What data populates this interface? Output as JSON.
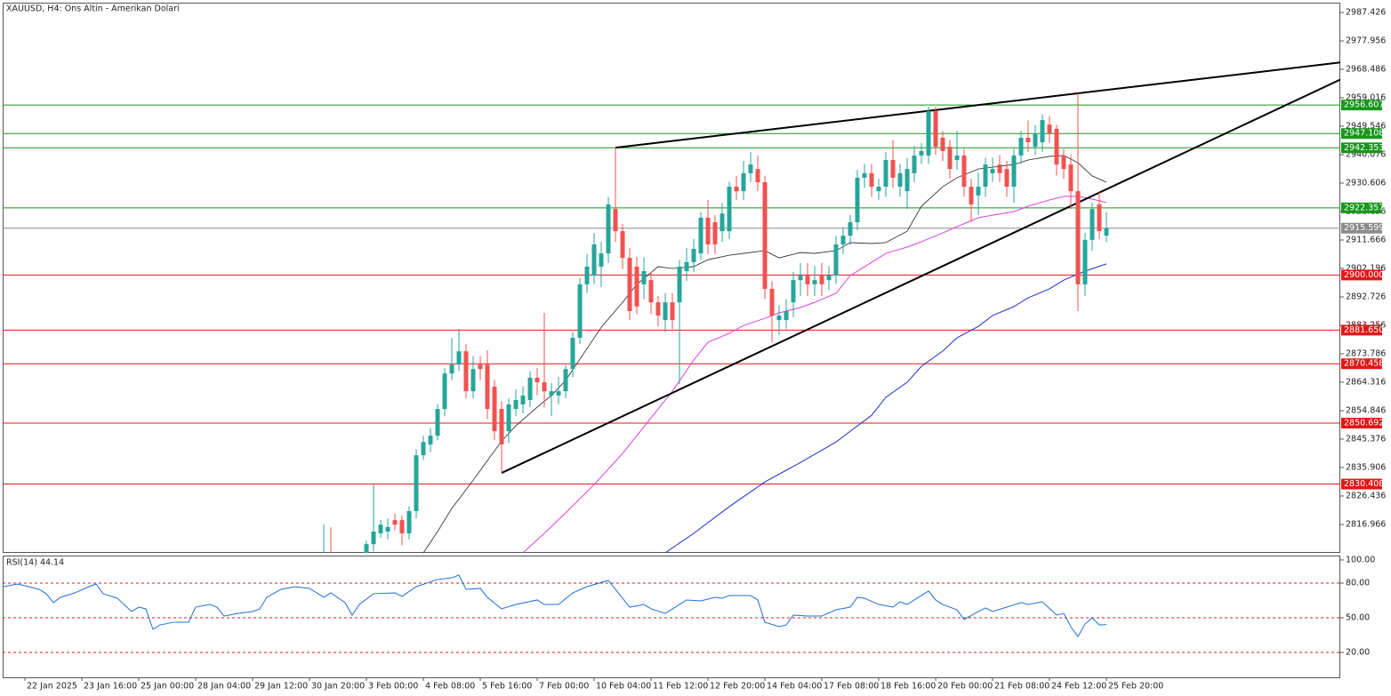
{
  "header": "XAUUSD, H4:  Ons Altin - Amerikan Dolari",
  "chart_data": {
    "type": "candlestick",
    "xlim": [
      -3.125,
      184.875
    ],
    "xticks": [
      {
        "value": 0,
        "label": "22 Jan 2025"
      },
      {
        "value": 8,
        "label": "23 Jan 16:00"
      },
      {
        "value": 16,
        "label": "25 Jan 00:00"
      },
      {
        "value": 24,
        "label": "28 Jan 04:00"
      },
      {
        "value": 32,
        "label": "29 Jan 12:00"
      },
      {
        "value": 40,
        "label": "30 Jan 20:00"
      },
      {
        "value": 48,
        "label": "3 Feb 00:00"
      },
      {
        "value": 56,
        "label": "4 Feb 08:00"
      },
      {
        "value": 64,
        "label": "5 Feb 16:00"
      },
      {
        "value": 72,
        "label": "7 Feb 00:00"
      },
      {
        "value": 80,
        "label": "10 Feb 04:00"
      },
      {
        "value": 88,
        "label": "11 Feb 12:00"
      },
      {
        "value": 96,
        "label": "12 Feb 20:00"
      },
      {
        "value": 104,
        "label": "14 Feb 04:00"
      },
      {
        "value": 112,
        "label": "17 Feb 08:00"
      },
      {
        "value": 120,
        "label": "18 Feb 16:00"
      },
      {
        "value": 128,
        "label": "20 Feb 00:00"
      },
      {
        "value": 136,
        "label": "21 Feb 08:00"
      },
      {
        "value": 144,
        "label": "24 Feb 12:00"
      },
      {
        "value": 152,
        "label": "25 Feb 20:00"
      }
    ],
    "ylim": [
      2807.49,
      2990.68
    ],
    "yticks": [
      2987.426,
      2977.956,
      2968.486,
      2959.016,
      2949.546,
      2940.076,
      2930.606,
      2921.136,
      2911.666,
      2902.196,
      2892.726,
      2883.256,
      2873.786,
      2864.316,
      2854.846,
      2845.376,
      2835.906,
      2826.436,
      2816.966
    ],
    "up_color": "#26a69a",
    "down_color": "#ef5350",
    "candles": [
      [
        42,
        2800,
        2817,
        2798,
        2805
      ],
      [
        43,
        2806,
        2816,
        2797,
        2801
      ],
      [
        48,
        2806,
        2811.6,
        2803,
        2810.4
      ],
      [
        49,
        2810.4,
        2830.2,
        2808,
        2814.6
      ],
      [
        50,
        2814,
        2818.5,
        2812.5,
        2816.9
      ],
      [
        51,
        2814.6,
        2819,
        2812,
        2816.1
      ],
      [
        52,
        2818.4,
        2820.5,
        2815,
        2816.9
      ],
      [
        53,
        2818.4,
        2820,
        2810,
        2814
      ],
      [
        54,
        2814,
        2823,
        2812,
        2821.4
      ],
      [
        55,
        2821.4,
        2842,
        2819,
        2840
      ],
      [
        56,
        2840,
        2846.5,
        2838.5,
        2844.4
      ],
      [
        57,
        2843.6,
        2849,
        2841,
        2846.5
      ],
      [
        58,
        2846.5,
        2857,
        2845,
        2855.4
      ],
      [
        59,
        2855.4,
        2869,
        2853,
        2867.2
      ],
      [
        60,
        2867.2,
        2879,
        2865,
        2870.2
      ],
      [
        61,
        2870.2,
        2882,
        2868,
        2874.6
      ],
      [
        62,
        2874.6,
        2877,
        2859,
        2861.3
      ],
      [
        63,
        2861.3,
        2873,
        2859,
        2868.7
      ],
      [
        64,
        2870.2,
        2873,
        2865,
        2868.7
      ],
      [
        65,
        2870.2,
        2875,
        2852,
        2855.4
      ],
      [
        66,
        2862.8,
        2865,
        2845,
        2848
      ],
      [
        67,
        2855.4,
        2858,
        2834.1,
        2843.6
      ],
      [
        68,
        2848,
        2859,
        2844,
        2856.9
      ],
      [
        69,
        2855.4,
        2862,
        2853,
        2858.4
      ],
      [
        70,
        2856.9,
        2863,
        2854,
        2859.9
      ],
      [
        71,
        2858.4,
        2868,
        2856,
        2865.8
      ],
      [
        72,
        2865.8,
        2869,
        2860,
        2864.3
      ],
      [
        73,
        2864.3,
        2887.4,
        2856,
        2861.3
      ],
      [
        74,
        2859.9,
        2864,
        2853,
        2861.3
      ],
      [
        75,
        2859.9,
        2866,
        2857,
        2861.3
      ],
      [
        76,
        2861.3,
        2870,
        2859,
        2868.7
      ],
      [
        77,
        2868.7,
        2881,
        2866,
        2879.1
      ],
      [
        78,
        2879.1,
        2899,
        2877,
        2896.9
      ],
      [
        79,
        2896.9,
        2907,
        2894,
        2902.8
      ],
      [
        80,
        2899.8,
        2914,
        2897,
        2910.2
      ],
      [
        81,
        2902.8,
        2911,
        2896,
        2907.2
      ],
      [
        82,
        2907.2,
        2926,
        2904,
        2923.5
      ],
      [
        83,
        2922,
        2942.4,
        2911,
        2914.6
      ],
      [
        84,
        2914.6,
        2917,
        2902,
        2905.7
      ],
      [
        85,
        2905.7,
        2909,
        2885,
        2888
      ],
      [
        86,
        2902.8,
        2906,
        2887,
        2889.5
      ],
      [
        87,
        2896.9,
        2906,
        2892,
        2901.3
      ],
      [
        88,
        2898.3,
        2901,
        2887,
        2890.9
      ],
      [
        89,
        2890.9,
        2893,
        2883,
        2886.5
      ],
      [
        90,
        2885,
        2894,
        2881,
        2890.9
      ],
      [
        91,
        2890.9,
        2894,
        2882,
        2885
      ],
      [
        92,
        2890.9,
        2905,
        2863.7,
        2902.8
      ],
      [
        93,
        2901.3,
        2909,
        2898,
        2904.3
      ],
      [
        94,
        2904.3,
        2912,
        2901,
        2908.7
      ],
      [
        95,
        2907.2,
        2921,
        2905,
        2919.1
      ],
      [
        96,
        2919.1,
        2925,
        2907,
        2910.2
      ],
      [
        97,
        2917.6,
        2920,
        2907,
        2910.2
      ],
      [
        98,
        2914.6,
        2924,
        2911,
        2920.5
      ],
      [
        99,
        2914.6,
        2931,
        2912,
        2929.4
      ],
      [
        100,
        2929.4,
        2933,
        2925,
        2927.9
      ],
      [
        101,
        2927.9,
        2938,
        2925,
        2933.9
      ],
      [
        102,
        2933.9,
        2941,
        2931,
        2936.8
      ],
      [
        103,
        2935.3,
        2939.8,
        2928,
        2930.9
      ],
      [
        104,
        2930.9,
        2933,
        2892,
        2895.4
      ],
      [
        105,
        2895.4,
        2898,
        2877.6,
        2886.5
      ],
      [
        106,
        2885,
        2890,
        2880,
        2886.5
      ],
      [
        107,
        2885,
        2892,
        2882,
        2888
      ],
      [
        108,
        2890.9,
        2901,
        2886,
        2898.3
      ],
      [
        109,
        2898.3,
        2904,
        2893,
        2899.8
      ],
      [
        110,
        2899.8,
        2904,
        2893,
        2896.9
      ],
      [
        111,
        2896.9,
        2903,
        2893,
        2898.3
      ],
      [
        112,
        2899.8,
        2904,
        2893,
        2896.9
      ],
      [
        113,
        2898.3,
        2903,
        2895,
        2899.8
      ],
      [
        114,
        2899.8,
        2913,
        2897,
        2910.2
      ],
      [
        115,
        2910.2,
        2916,
        2907,
        2913.1
      ],
      [
        116,
        2913.1,
        2920,
        2910,
        2917.6
      ],
      [
        117,
        2917.6,
        2935,
        2915,
        2932.4
      ],
      [
        118,
        2932.4,
        2937,
        2929,
        2933.9
      ],
      [
        119,
        2933.9,
        2937,
        2926,
        2929.4
      ],
      [
        120,
        2927.9,
        2932,
        2925,
        2929.4
      ],
      [
        121,
        2929.4,
        2941,
        2926,
        2938.3
      ],
      [
        122,
        2938.3,
        2945,
        2929,
        2932.4
      ],
      [
        123,
        2929.4,
        2937,
        2926,
        2933.9
      ],
      [
        124,
        2927.9,
        2939,
        2922,
        2935.3
      ],
      [
        125,
        2933.9,
        2943,
        2931,
        2939.8
      ],
      [
        126,
        2939.8,
        2944,
        2937,
        2941.3
      ],
      [
        127,
        2939.8,
        2956,
        2937,
        2954.6
      ],
      [
        128,
        2954.6,
        2956,
        2940,
        2942.7
      ],
      [
        129,
        2945.7,
        2948,
        2938,
        2941.3
      ],
      [
        130,
        2942.7,
        2945,
        2932,
        2935.3
      ],
      [
        131,
        2938.3,
        2948,
        2935,
        2939.8
      ],
      [
        132,
        2939.8,
        2942,
        2926,
        2929.4
      ],
      [
        133,
        2929.4,
        2932,
        2917.6,
        2923.5
      ],
      [
        134,
        2926.5,
        2934,
        2920,
        2929.4
      ],
      [
        135,
        2929.4,
        2939,
        2926,
        2936.8
      ],
      [
        136,
        2933.9,
        2939,
        2931,
        2935.3
      ],
      [
        137,
        2936.8,
        2940,
        2931,
        2933.9
      ],
      [
        138,
        2935.3,
        2938,
        2926,
        2929.4
      ],
      [
        139,
        2929.4,
        2942,
        2924,
        2939.8
      ],
      [
        140,
        2939.8,
        2948,
        2937,
        2945.7
      ],
      [
        141,
        2945.7,
        2951.5,
        2941,
        2944.2
      ],
      [
        142,
        2942.7,
        2950,
        2940,
        2947.2
      ],
      [
        143,
        2944.2,
        2953.5,
        2941,
        2951.6
      ],
      [
        144,
        2950.1,
        2953,
        2944,
        2947.2
      ],
      [
        145,
        2948.7,
        2950,
        2933,
        2936.8
      ],
      [
        146,
        2939.8,
        2942,
        2932,
        2935.3
      ],
      [
        147,
        2936.8,
        2940,
        2922,
        2927.9
      ],
      [
        148,
        2927.9,
        2960.5,
        2888,
        2896.9
      ],
      [
        149,
        2896.9,
        2914,
        2893,
        2911.7
      ],
      [
        150,
        2911.7,
        2924,
        2908,
        2922
      ],
      [
        151,
        2923.5,
        2928,
        2912,
        2914.6
      ],
      [
        152,
        2913.1,
        2921,
        2911,
        2915.6
      ]
    ],
    "moving_averages": [
      {
        "color": "#222222",
        "x": [
          56,
          58,
          60,
          63,
          65,
          67,
          69,
          72,
          74,
          76,
          79,
          81,
          84,
          86,
          89,
          91,
          94,
          96,
          99,
          101,
          104,
          106,
          109,
          111,
          114,
          116,
          119,
          121,
          124,
          126,
          129,
          131,
          134,
          136,
          139,
          141,
          144,
          146,
          148,
          150,
          152
        ],
        "values": [
          2807.5,
          2814.6,
          2822.3,
          2831.7,
          2838.2,
          2844.7,
          2849.8,
          2856,
          2859.9,
          2864.9,
          2875.5,
          2882.6,
          2890.9,
          2896.9,
          2902.8,
          2902.2,
          2902.8,
          2905.1,
          2906.6,
          2907.2,
          2908.1,
          2905.7,
          2907.5,
          2907.2,
          2908.1,
          2910.8,
          2910.5,
          2910.8,
          2914.6,
          2922.9,
          2929.4,
          2932.4,
          2935.3,
          2935.9,
          2936.8,
          2938.3,
          2939.5,
          2939.8,
          2937.4,
          2933,
          2930.9
        ]
      },
      {
        "color": "#e040e0",
        "x": [
          70,
          73,
          76,
          80,
          84,
          86,
          89,
          91,
          94,
          96,
          99,
          101,
          104,
          106,
          109,
          111,
          114,
          116,
          119,
          121,
          124,
          126,
          129,
          131,
          134,
          136,
          139,
          141,
          144,
          146,
          148,
          150,
          152
        ],
        "values": [
          2807.5,
          2814,
          2820.8,
          2830.2,
          2840.6,
          2846.5,
          2855.4,
          2861.3,
          2871.7,
          2877.6,
          2880.6,
          2883.2,
          2885.6,
          2887.4,
          2889.2,
          2890.9,
          2893.9,
          2899.8,
          2904.2,
          2907.2,
          2909.3,
          2911.1,
          2914,
          2916.1,
          2919.1,
          2919.9,
          2921.1,
          2922.9,
          2925,
          2926.2,
          2926.2,
          2925.3,
          2924.1
        ]
      },
      {
        "color": "#1c2fc8",
        "x": [
          90,
          94,
          99,
          104,
          109,
          114,
          116,
          119,
          121,
          124,
          126,
          129,
          131,
          134,
          136,
          139,
          141,
          144,
          146,
          149,
          152
        ],
        "values": [
          2807.5,
          2814,
          2822.9,
          2831.1,
          2837.6,
          2844.4,
          2848,
          2853.3,
          2859.3,
          2864.3,
          2869.6,
          2874.7,
          2879.1,
          2882.9,
          2886.5,
          2889.5,
          2892.4,
          2895.4,
          2898.3,
          2901.3,
          2903.7
        ]
      }
    ],
    "trendlines": [
      {
        "color": "#000000",
        "x": [
          83,
          148
        ],
        "values": [
          2942.4,
          2960.5
        ]
      },
      {
        "color": "#000000",
        "x": [
          67,
          148
        ],
        "values": [
          2834.1,
          2924.1
        ]
      }
    ],
    "levels": [
      {
        "value": 2956.607,
        "color": "#18961c"
      },
      {
        "value": 2947.108,
        "color": "#18961c"
      },
      {
        "value": 2942.353,
        "color": "#18961c"
      },
      {
        "value": 2922.357,
        "color": "#18961c"
      },
      {
        "value": 2915.599,
        "color": "#8a8a8a"
      },
      {
        "value": 2900,
        "label": "2900.000",
        "color": "#e01818"
      },
      {
        "value": 2881.65,
        "label": "2881.650",
        "color": "#e01818"
      },
      {
        "value": 2870.458,
        "color": "#e01818"
      },
      {
        "value": 2850.692,
        "color": "#e01818"
      },
      {
        "value": 2830.408,
        "color": "#e01818"
      }
    ]
  },
  "rsi": {
    "title": "RSI(14) 44.14",
    "color": "#1e6fd9",
    "level_color": "#d02020",
    "ylim": [
      -1.5,
      103.8
    ],
    "yticks": [
      {
        "value": 100,
        "label": "100.00"
      },
      {
        "value": 80,
        "label": "80.00"
      },
      {
        "value": 50,
        "label": "50.00"
      },
      {
        "value": 20,
        "label": "20.00"
      }
    ],
    "levels": [
      80,
      50,
      20
    ],
    "x": [
      -3,
      -1,
      2,
      3,
      4,
      5,
      7,
      9,
      10,
      11,
      13,
      15,
      16,
      17,
      18,
      19,
      21,
      23,
      24,
      26,
      27,
      28,
      30,
      32,
      33,
      34,
      36,
      38,
      40,
      42,
      43,
      45,
      46,
      47,
      49,
      52,
      53,
      55,
      58,
      60,
      61,
      62,
      64,
      65,
      67,
      69,
      72,
      73,
      75,
      77,
      79,
      82,
      83,
      85,
      87,
      88,
      90,
      92,
      93,
      95,
      97,
      98,
      99,
      102,
      103,
      104,
      106,
      107,
      108,
      110,
      112,
      114,
      116,
      117,
      118,
      120,
      122,
      123,
      124,
      125,
      127,
      128,
      129,
      131,
      132,
      134,
      135,
      136,
      138,
      140,
      141,
      143,
      145,
      146,
      147,
      148,
      149,
      150,
      151,
      152
    ],
    "values": [
      76.9,
      79.2,
      74.6,
      70.8,
      63.1,
      67.7,
      71.5,
      76.9,
      79.2,
      70.8,
      66.9,
      55.4,
      59.2,
      57.7,
      40,
      43.8,
      46.2,
      46.2,
      59.2,
      61.5,
      59.2,
      51.5,
      53.8,
      55.4,
      57.7,
      67.7,
      74.6,
      76.9,
      75.4,
      67.7,
      71.5,
      63.1,
      52.3,
      61.5,
      70.8,
      71.5,
      68.5,
      76.9,
      83.1,
      84.6,
      86.9,
      74.6,
      75.4,
      67.7,
      57.7,
      61.5,
      65.4,
      61.5,
      61.5,
      71.5,
      76.9,
      82.3,
      74.6,
      59.2,
      61.5,
      57.7,
      53.8,
      61.5,
      65.4,
      64.6,
      67.7,
      66.9,
      69.2,
      69.2,
      65.4,
      46.2,
      42.3,
      43.8,
      52.3,
      51.5,
      51.5,
      56.9,
      59.2,
      67.7,
      66.9,
      61.5,
      59.2,
      63.8,
      61.5,
      65.4,
      73.1,
      65.4,
      61.5,
      56.9,
      48.5,
      55.4,
      58.5,
      55.4,
      59.2,
      63.1,
      61.5,
      63.8,
      52.3,
      53.8,
      42.3,
      33.8,
      44.6,
      50,
      43.8,
      44.14
    ]
  }
}
